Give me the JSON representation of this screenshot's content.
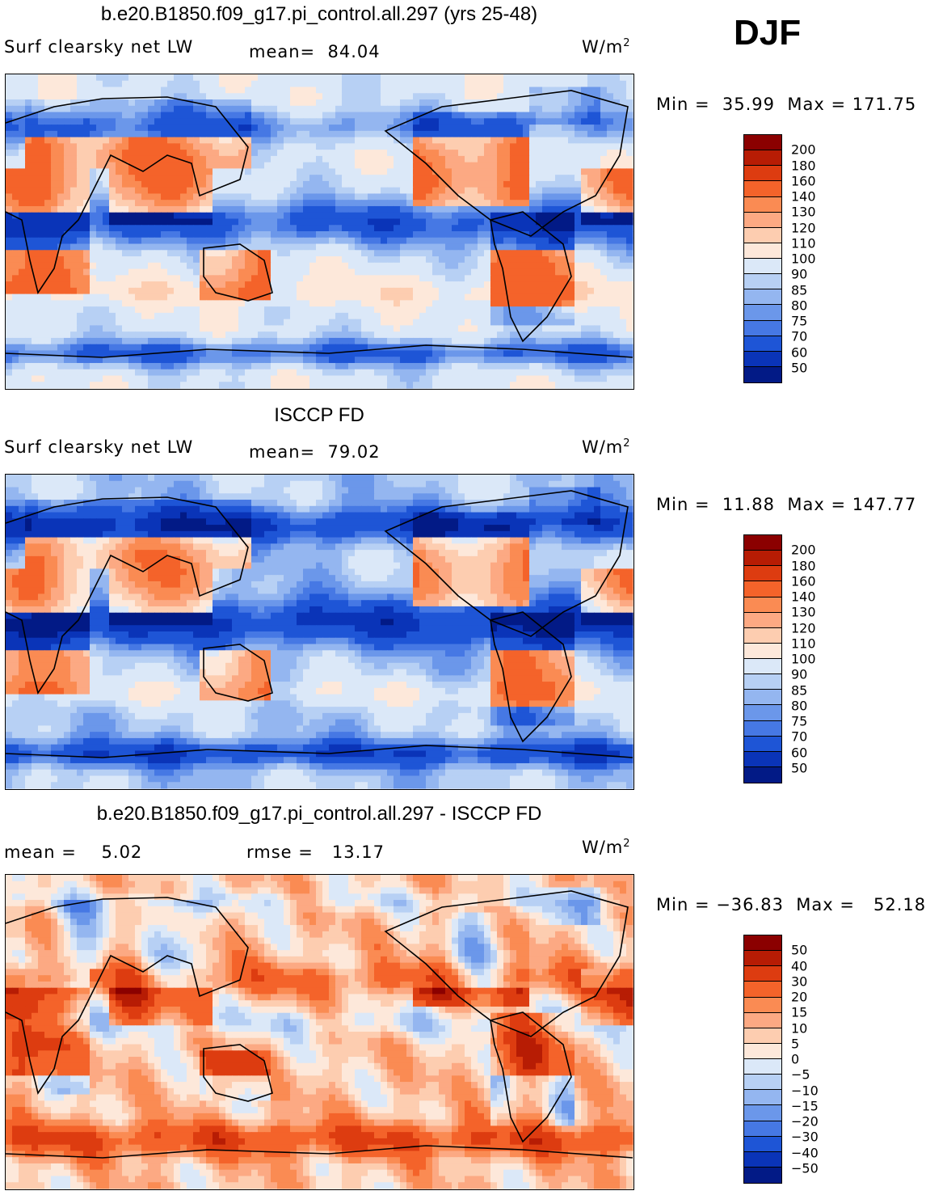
{
  "season": "DJF",
  "panels": [
    {
      "title": "b.e20.B1850.f09_g17.pi_control.all.297 (yrs 25-48)",
      "field_label": "Surf clearsky net LW",
      "stat1": "mean=  84.04",
      "stat2": "",
      "units_base": "W/m",
      "units_exp": "2",
      "minmax": "Min =  35.99  Max = 171.75",
      "colorbar": {
        "levels": [
          "200",
          "180",
          "160",
          "140",
          "130",
          "120",
          "110",
          "100",
          "90",
          "85",
          "80",
          "75",
          "70",
          "60",
          "50"
        ],
        "colors": [
          "#8b0000",
          "#b71c04",
          "#dd3c10",
          "#f4632a",
          "#fa8b53",
          "#fca983",
          "#fdcdb0",
          "#fde8da",
          "#dbe8f8",
          "#b7d0f4",
          "#94b6f0",
          "#6b97ea",
          "#4678e4",
          "#1e55d6",
          "#0a34b8",
          "#021a86"
        ]
      },
      "colormode": "abs"
    },
    {
      "title": "ISCCP FD",
      "field_label": "Surf clearsky net LW",
      "stat1": "mean=  79.02",
      "stat2": "",
      "units_base": "W/m",
      "units_exp": "2",
      "minmax": "Min =  11.88  Max = 147.77",
      "colorbar": {
        "levels": [
          "200",
          "180",
          "160",
          "140",
          "130",
          "120",
          "110",
          "100",
          "90",
          "85",
          "80",
          "75",
          "70",
          "60",
          "50"
        ],
        "colors": [
          "#8b0000",
          "#b71c04",
          "#dd3c10",
          "#f4632a",
          "#fa8b53",
          "#fca983",
          "#fdcdb0",
          "#fde8da",
          "#dbe8f8",
          "#b7d0f4",
          "#94b6f0",
          "#6b97ea",
          "#4678e4",
          "#1e55d6",
          "#0a34b8",
          "#021a86"
        ]
      },
      "colormode": "abs2"
    },
    {
      "title": "b.e20.B1850.f09_g17.pi_control.all.297 - ISCCP FD",
      "field_label": "",
      "stat1": "mean =    5.02",
      "stat2": "rmse =   13.17",
      "units_base": "W/m",
      "units_exp": "2",
      "minmax": "Min = −36.83  Max =   52.18",
      "colorbar": {
        "levels": [
          "50",
          "40",
          "30",
          "20",
          "15",
          "10",
          "5",
          "0",
          "−5",
          "−10",
          "−15",
          "−20",
          "−30",
          "−40",
          "−50"
        ],
        "colors": [
          "#8b0000",
          "#b71c04",
          "#dd3c10",
          "#f4632a",
          "#fa8b53",
          "#fca983",
          "#fdcdb0",
          "#fde8da",
          "#dbe8f8",
          "#b7d0f4",
          "#94b6f0",
          "#6b97ea",
          "#4678e4",
          "#1e55d6",
          "#0a34b8",
          "#021a86"
        ]
      },
      "colormode": "diff"
    }
  ]
}
